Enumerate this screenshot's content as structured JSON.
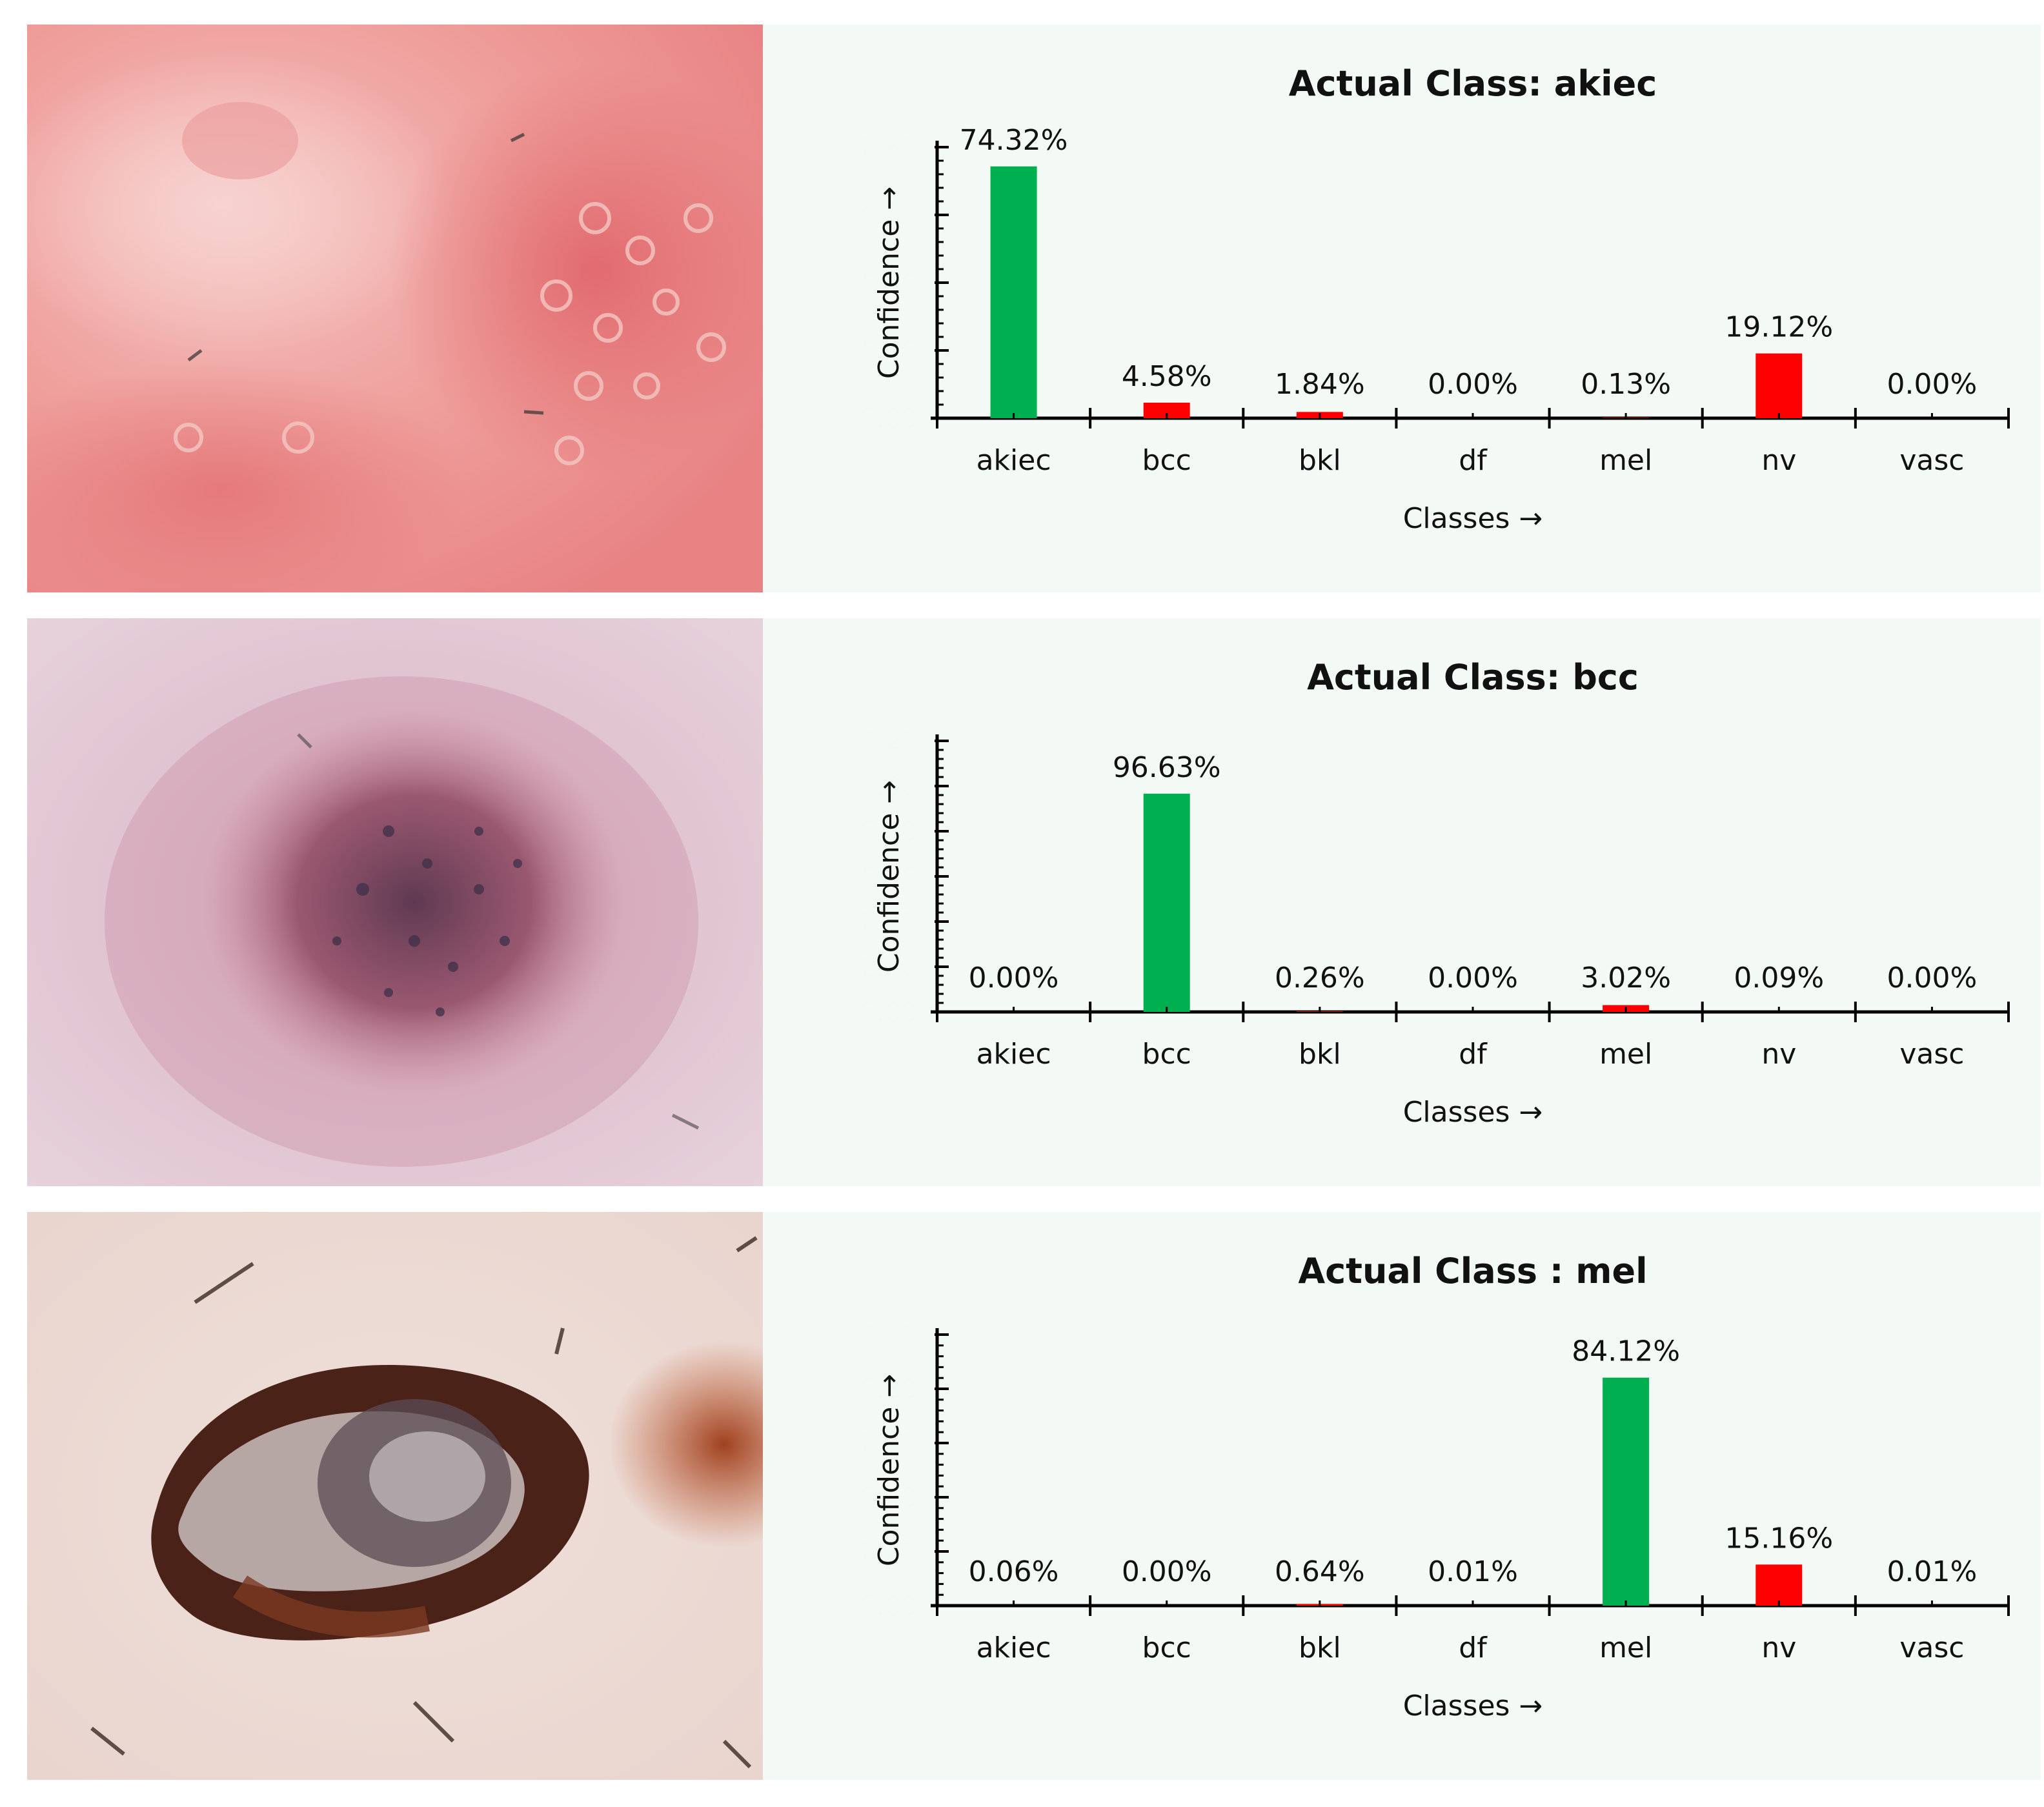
{
  "colors": {
    "panel_bg": "#f3f9f4",
    "correct": "#00b050",
    "wrong": "#ff0000",
    "axis": "#000000"
  },
  "rows": [
    {
      "image_icon": "dermoscopy-lesion-akiec"
    },
    {
      "image_icon": "dermoscopy-lesion-bcc"
    },
    {
      "image_icon": "dermoscopy-lesion-mel"
    }
  ],
  "chart_data": [
    {
      "type": "bar",
      "title": "Actual Class: akiec",
      "xlabel": "Classes →",
      "ylabel": "Confidence →",
      "categories": [
        "akiec",
        "bcc",
        "bkl",
        "df",
        "mel",
        "nv",
        "vasc"
      ],
      "values": [
        0.7432,
        0.0458,
        0.0184,
        0.0,
        0.0013,
        0.1912,
        0.0
      ],
      "data_labels": [
        "74.32%",
        "4.58%",
        "1.84%",
        "0.00%",
        "0.13%",
        "19.12%",
        "0.00%"
      ],
      "ylim": [
        0,
        0.8
      ],
      "yticks": [
        "0.00",
        "0.20",
        "0.40",
        "0.60",
        "0.80"
      ],
      "actual_index": 0
    },
    {
      "type": "bar",
      "title": "Actual Class: bcc",
      "xlabel": "Classes →",
      "ylabel": "Confidence →",
      "categories": [
        "akiec",
        "bcc",
        "bkl",
        "df",
        "mel",
        "nv",
        "vasc"
      ],
      "values": [
        0.0,
        0.9663,
        0.0026,
        0.0,
        0.0302,
        0.0009,
        0.0
      ],
      "data_labels": [
        "0.00%",
        "96.63%",
        "0.26%",
        "0.00%",
        "3.02%",
        "0.09%",
        "0.00%"
      ],
      "ylim": [
        0,
        1.2
      ],
      "yticks": [
        "0.00",
        "0.20",
        "0.40",
        "0.60",
        "0.80",
        "1.00",
        "1.20"
      ],
      "actual_index": 1
    },
    {
      "type": "bar",
      "title": "Actual Class : mel",
      "xlabel": "Classes →",
      "ylabel": "Confidence →",
      "categories": [
        "akiec",
        "bcc",
        "bkl",
        "df",
        "mel",
        "nv",
        "vasc"
      ],
      "values": [
        0.0006,
        0.0,
        0.0064,
        0.0001,
        0.8412,
        0.1516,
        0.0001
      ],
      "data_labels": [
        "0.06%",
        "0.00%",
        "0.64%",
        "0.01%",
        "84.12%",
        "15.16%",
        "0.01%"
      ],
      "ylim": [
        0,
        1.0
      ],
      "yticks": [
        "0.00",
        "0.20",
        "0.40",
        "0.60",
        "0.80",
        "1.00"
      ],
      "actual_index": 4
    }
  ]
}
